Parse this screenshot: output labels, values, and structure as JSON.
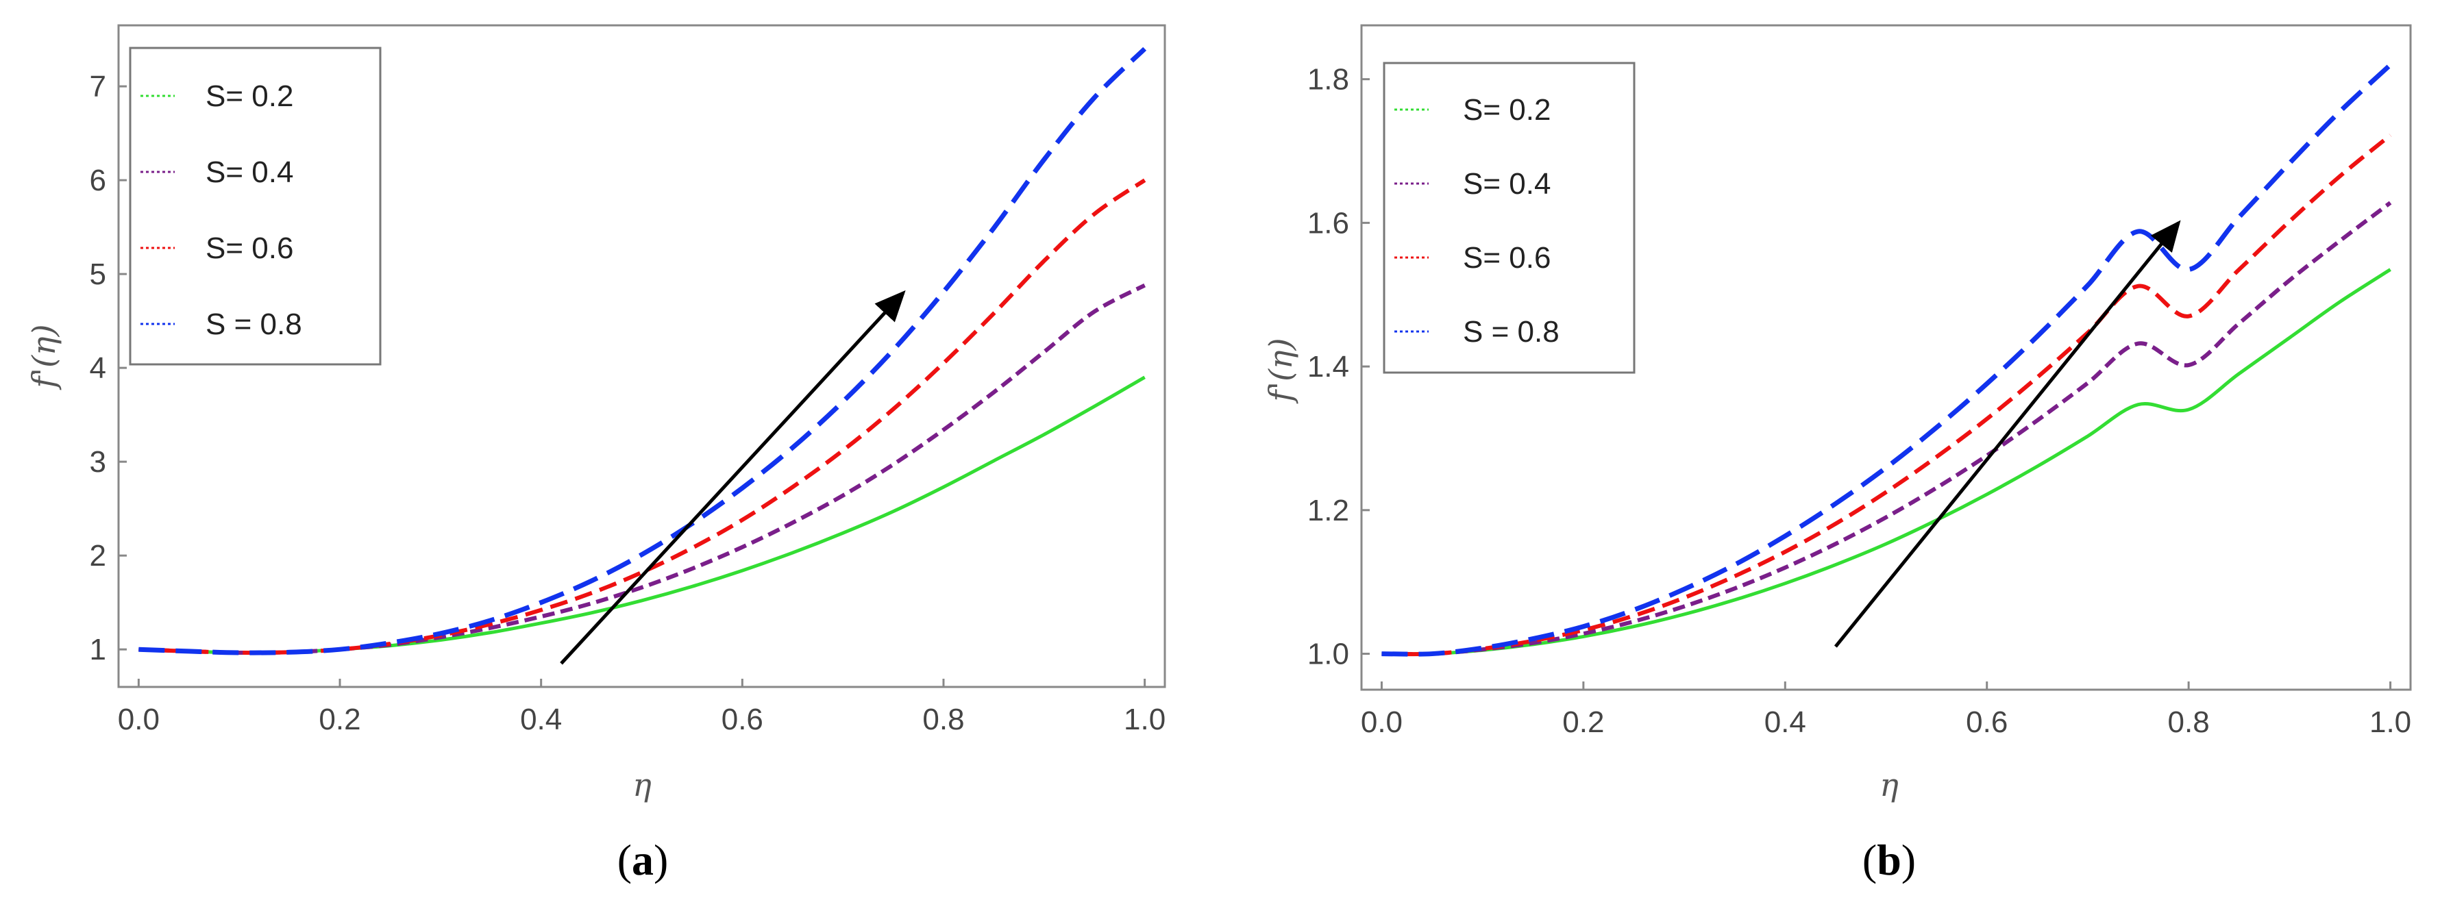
{
  "chart_data": [
    {
      "type": "line",
      "panel_label": {
        "open": "(",
        "letter": "a",
        "close": ")"
      },
      "xlabel": "η",
      "ylabel": "f'(η)",
      "xlim": [
        -0.02,
        1.02
      ],
      "ylim": [
        0.6,
        7.65
      ],
      "x_ticks": [
        0.0,
        0.2,
        0.4,
        0.6,
        0.8,
        1.0
      ],
      "x_tick_labels": [
        "0.0",
        "0.2",
        "0.4",
        "0.6",
        "0.8",
        "1.0"
      ],
      "y_ticks": [
        1,
        2,
        3,
        4,
        5,
        6,
        7
      ],
      "y_tick_labels": [
        "1",
        "2",
        "3",
        "4",
        "5",
        "6",
        "7"
      ],
      "legend_position": "top-left",
      "x": [
        0.0,
        0.05,
        0.1,
        0.15,
        0.2,
        0.25,
        0.3,
        0.35,
        0.4,
        0.45,
        0.5,
        0.55,
        0.6,
        0.65,
        0.7,
        0.75,
        0.8,
        0.85,
        0.9,
        0.95,
        1.0
      ],
      "series": [
        {
          "name": "S= 0.2",
          "color": "#33dd33",
          "dash": "solid",
          "values": [
            1.0,
            0.98,
            0.965,
            0.97,
            1.0,
            1.04,
            1.1,
            1.18,
            1.28,
            1.39,
            1.52,
            1.67,
            1.84,
            2.03,
            2.24,
            2.47,
            2.73,
            3.01,
            3.29,
            3.59,
            3.9
          ]
        },
        {
          "name": "S= 0.4",
          "color": "#7a1f8a",
          "dash": "short",
          "values": [
            1.0,
            0.98,
            0.965,
            0.97,
            1.0,
            1.05,
            1.13,
            1.23,
            1.35,
            1.49,
            1.66,
            1.86,
            2.09,
            2.35,
            2.64,
            2.97,
            3.34,
            3.74,
            4.17,
            4.6,
            4.88
          ]
        },
        {
          "name": "S= 0.6",
          "color": "#ee1111",
          "dash": "medium",
          "values": [
            1.0,
            0.98,
            0.965,
            0.97,
            1.0,
            1.06,
            1.15,
            1.27,
            1.42,
            1.6,
            1.82,
            2.08,
            2.38,
            2.73,
            3.12,
            3.56,
            4.05,
            4.58,
            5.14,
            5.64,
            6.0
          ]
        },
        {
          "name": "S = 0.8",
          "color": "#1133ee",
          "dash": "long",
          "values": [
            1.0,
            0.98,
            0.965,
            0.97,
            1.0,
            1.07,
            1.17,
            1.31,
            1.5,
            1.73,
            2.01,
            2.34,
            2.72,
            3.15,
            3.64,
            4.19,
            4.81,
            5.49,
            6.22,
            6.88,
            7.4
          ]
        }
      ],
      "arrow": {
        "from": [
          0.42,
          0.85
        ],
        "to": [
          0.76,
          4.8
        ]
      }
    },
    {
      "type": "line",
      "panel_label": {
        "open": "(",
        "letter": "b",
        "close": ")"
      },
      "xlabel": "η",
      "ylabel": "f'(η)",
      "xlim": [
        -0.02,
        1.02
      ],
      "ylim": [
        0.95,
        1.875
      ],
      "x_ticks": [
        0.0,
        0.2,
        0.4,
        0.6,
        0.8,
        1.0
      ],
      "x_tick_labels": [
        "0.0",
        "0.2",
        "0.4",
        "0.6",
        "0.8",
        "1.0"
      ],
      "y_ticks": [
        1.0,
        1.2,
        1.4,
        1.6,
        1.8
      ],
      "y_tick_labels": [
        "1.0",
        "1.2",
        "1.4",
        "1.6",
        "1.8"
      ],
      "legend_position": "top-left",
      "x": [
        0.0,
        0.05,
        0.1,
        0.15,
        0.2,
        0.25,
        0.3,
        0.35,
        0.4,
        0.45,
        0.5,
        0.55,
        0.6,
        0.65,
        0.7,
        0.75,
        0.8,
        0.85,
        0.9,
        0.95,
        1.0
      ],
      "series": [
        {
          "name": "S= 0.2",
          "color": "#33dd33",
          "dash": "solid",
          "values": [
            1.0,
            1.0,
            1.005,
            1.013,
            1.024,
            1.038,
            1.055,
            1.075,
            1.098,
            1.124,
            1.153,
            1.186,
            1.222,
            1.261,
            1.303,
            1.347,
            1.34,
            1.39,
            1.44,
            1.49,
            1.535
          ]
        },
        {
          "name": "S= 0.4",
          "color": "#7a1f8a",
          "dash": "short",
          "values": [
            1.0,
            1.0,
            1.006,
            1.015,
            1.028,
            1.045,
            1.066,
            1.091,
            1.12,
            1.153,
            1.19,
            1.231,
            1.276,
            1.325,
            1.377,
            1.432,
            1.402,
            1.46,
            1.52,
            1.575,
            1.628
          ]
        },
        {
          "name": "S= 0.6",
          "color": "#ee1111",
          "dash": "medium",
          "values": [
            1.0,
            1.0,
            1.007,
            1.018,
            1.033,
            1.053,
            1.078,
            1.108,
            1.142,
            1.181,
            1.225,
            1.274,
            1.327,
            1.385,
            1.447,
            1.512,
            1.47,
            1.535,
            1.602,
            1.665,
            1.722
          ]
        },
        {
          "name": "S = 0.8",
          "color": "#1133ee",
          "dash": "long",
          "values": [
            1.0,
            1.0,
            1.008,
            1.021,
            1.038,
            1.061,
            1.09,
            1.124,
            1.164,
            1.209,
            1.259,
            1.315,
            1.376,
            1.442,
            1.513,
            1.588,
            1.535,
            1.608,
            1.683,
            1.755,
            1.82
          ]
        }
      ],
      "arrow": {
        "from": [
          0.45,
          1.01
        ],
        "to": [
          0.79,
          1.6
        ]
      }
    }
  ]
}
